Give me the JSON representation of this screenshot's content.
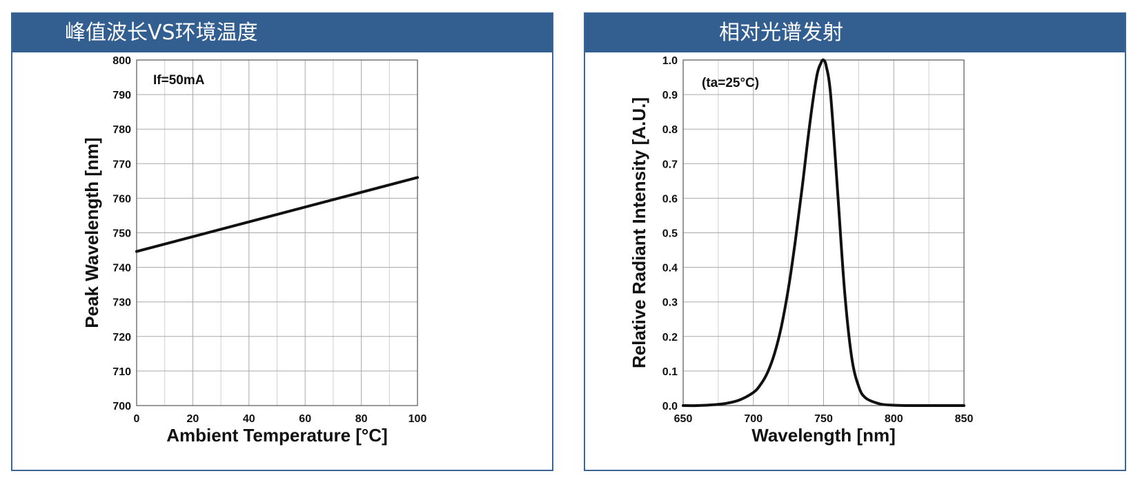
{
  "chart_data": [
    {
      "type": "line",
      "title": "峰值波长VS环境温度",
      "annotation": "If=50mA",
      "xlabel": "Ambient Temperature [°C]",
      "ylabel": "Peak Wavelength [nm]",
      "xlim": [
        0,
        100
      ],
      "ylim": [
        700,
        800
      ],
      "xticks": [
        "0",
        "20",
        "40",
        "60",
        "80",
        "100"
      ],
      "yticks": [
        "700",
        "710",
        "720",
        "730",
        "740",
        "750",
        "760",
        "770",
        "780",
        "790",
        "800"
      ],
      "grid": true,
      "x": [
        0,
        100
      ],
      "y": [
        744.6,
        766.0
      ]
    },
    {
      "type": "line",
      "title": "相对光谱发射",
      "annotation": "(ta=25°C)",
      "xlabel": "Wavelength [nm]",
      "ylabel": "Relative Radiant Intensity [A.U.]",
      "xlim": [
        650,
        850
      ],
      "ylim": [
        0,
        1.0
      ],
      "xticks": [
        "650",
        "700",
        "750",
        "800",
        "850"
      ],
      "yticks": [
        "0.0",
        "0.1",
        "0.2",
        "0.3",
        "0.4",
        "0.5",
        "0.6",
        "0.7",
        "0.8",
        "0.9",
        "1.0"
      ],
      "grid": true,
      "x": [
        650,
        660,
        670,
        680,
        690,
        700,
        705,
        710,
        715,
        720,
        725,
        730,
        735,
        740,
        745,
        748,
        750,
        752,
        755,
        760,
        765,
        770,
        775,
        780,
        790,
        800,
        810,
        830,
        850
      ],
      "y": [
        0.0,
        0.0,
        0.002,
        0.006,
        0.016,
        0.038,
        0.06,
        0.095,
        0.15,
        0.23,
        0.34,
        0.48,
        0.64,
        0.81,
        0.95,
        0.99,
        1.0,
        0.98,
        0.9,
        0.62,
        0.33,
        0.14,
        0.055,
        0.022,
        0.005,
        0.001,
        0.0,
        0.0,
        0.0
      ]
    }
  ]
}
